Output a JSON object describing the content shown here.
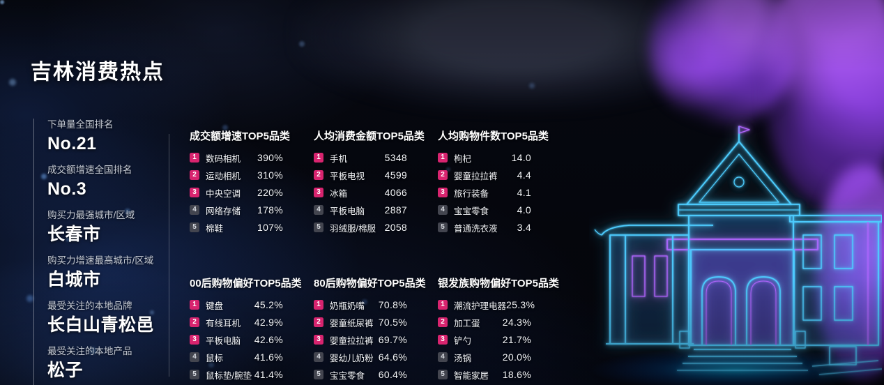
{
  "title": "吉林消费热点",
  "sidebar": {
    "stats": [
      {
        "label": "下单量全国排名",
        "value": "No.21"
      },
      {
        "label": "成交额增速全国排名",
        "value": "No.3"
      },
      {
        "label": "购买力最强城市/区域",
        "value": "长春市"
      },
      {
        "label": "购买力增速最高城市/区域",
        "value": "白城市"
      },
      {
        "label": "最受关注的本地品牌",
        "value": "长白山青松邑"
      },
      {
        "label": "最受关注的本地产品",
        "value": "松子"
      }
    ]
  },
  "tables": [
    {
      "title": "成交额增速TOP5品类",
      "rows": [
        {
          "rank": "1",
          "name": "数码相机",
          "value": "390%"
        },
        {
          "rank": "2",
          "name": "运动相机",
          "value": "310%"
        },
        {
          "rank": "3",
          "name": "中央空调",
          "value": "220%"
        },
        {
          "rank": "4",
          "name": "网络存储",
          "value": "178%"
        },
        {
          "rank": "5",
          "name": "棉鞋",
          "value": "107%"
        }
      ]
    },
    {
      "title": "人均消费金额TOP5品类",
      "rows": [
        {
          "rank": "1",
          "name": "手机",
          "value": "5348"
        },
        {
          "rank": "2",
          "name": "平板电视",
          "value": "4599"
        },
        {
          "rank": "3",
          "name": "冰箱",
          "value": "4066"
        },
        {
          "rank": "4",
          "name": "平板电脑",
          "value": "2887"
        },
        {
          "rank": "5",
          "name": "羽绒服/棉服",
          "value": "2058"
        }
      ]
    },
    {
      "title": "人均购物件数TOP5品类",
      "rows": [
        {
          "rank": "1",
          "name": "枸杞",
          "value": "14.0"
        },
        {
          "rank": "2",
          "name": "婴童拉拉裤",
          "value": "4.4"
        },
        {
          "rank": "3",
          "name": "旅行装备",
          "value": "4.1"
        },
        {
          "rank": "4",
          "name": "宝宝零食",
          "value": "4.0"
        },
        {
          "rank": "5",
          "name": "普通洗衣液",
          "value": "3.4"
        }
      ]
    },
    {
      "title": "00后购物偏好TOP5品类",
      "rows": [
        {
          "rank": "1",
          "name": "键盘",
          "value": "45.2%"
        },
        {
          "rank": "2",
          "name": "有线耳机",
          "value": "42.9%"
        },
        {
          "rank": "3",
          "name": "平板电脑",
          "value": "42.6%"
        },
        {
          "rank": "4",
          "name": "鼠标",
          "value": "41.6%"
        },
        {
          "rank": "5",
          "name": "鼠标垫/腕垫",
          "value": "41.4%"
        }
      ]
    },
    {
      "title": "80后购物偏好TOP5品类",
      "rows": [
        {
          "rank": "1",
          "name": "奶瓶奶嘴",
          "value": "70.8%"
        },
        {
          "rank": "2",
          "name": "婴童纸尿裤",
          "value": "70.5%"
        },
        {
          "rank": "3",
          "name": "婴童拉拉裤",
          "value": "69.7%"
        },
        {
          "rank": "4",
          "name": "婴幼儿奶粉",
          "value": "64.6%"
        },
        {
          "rank": "5",
          "name": "宝宝零食",
          "value": "60.4%"
        }
      ]
    },
    {
      "title": "银发族购物偏好TOP5品类",
      "rows": [
        {
          "rank": "1",
          "name": "潮流护理电器",
          "value": "25.3%"
        },
        {
          "rank": "2",
          "name": "加工蛋",
          "value": "24.3%"
        },
        {
          "rank": "3",
          "name": "铲勺",
          "value": "21.7%"
        },
        {
          "rank": "4",
          "name": "汤锅",
          "value": "20.0%"
        },
        {
          "rank": "5",
          "name": "智能家居",
          "value": "18.6%"
        }
      ]
    }
  ],
  "colors": {
    "rank_badge_top3": "#d8246f",
    "rank_badge_rest": "#43454f",
    "neon_cyan": "#4ecdff",
    "neon_purple": "#b265ff",
    "label_gray": "#c5cad3"
  },
  "chart_data": [
    {
      "type": "table",
      "title": "成交额增速TOP5品类",
      "rows": [
        [
          1,
          "数码相机",
          "390%"
        ],
        [
          2,
          "运动相机",
          "310%"
        ],
        [
          3,
          "中央空调",
          "220%"
        ],
        [
          4,
          "网络存储",
          "178%"
        ],
        [
          5,
          "棉鞋",
          "107%"
        ]
      ]
    },
    {
      "type": "table",
      "title": "人均消费金额TOP5品类",
      "rows": [
        [
          1,
          "手机",
          "5348"
        ],
        [
          2,
          "平板电视",
          "4599"
        ],
        [
          3,
          "冰箱",
          "4066"
        ],
        [
          4,
          "平板电脑",
          "2887"
        ],
        [
          5,
          "羽绒服/棉服",
          "2058"
        ]
      ]
    },
    {
      "type": "table",
      "title": "人均购物件数TOP5品类",
      "rows": [
        [
          1,
          "枸杞",
          "14.0"
        ],
        [
          2,
          "婴童拉拉裤",
          "4.4"
        ],
        [
          3,
          "旅行装备",
          "4.1"
        ],
        [
          4,
          "宝宝零食",
          "4.0"
        ],
        [
          5,
          "普通洗衣液",
          "3.4"
        ]
      ]
    },
    {
      "type": "table",
      "title": "00后购物偏好TOP5品类",
      "rows": [
        [
          1,
          "键盘",
          "45.2%"
        ],
        [
          2,
          "有线耳机",
          "42.9%"
        ],
        [
          3,
          "平板电脑",
          "42.6%"
        ],
        [
          4,
          "鼠标",
          "41.6%"
        ],
        [
          5,
          "鼠标垫/腕垫",
          "41.4%"
        ]
      ]
    },
    {
      "type": "table",
      "title": "80后购物偏好TOP5品类",
      "rows": [
        [
          1,
          "奶瓶奶嘴",
          "70.8%"
        ],
        [
          2,
          "婴童纸尿裤",
          "70.5%"
        ],
        [
          3,
          "婴童拉拉裤",
          "69.7%"
        ],
        [
          4,
          "婴幼儿奶粉",
          "64.6%"
        ],
        [
          5,
          "宝宝零食",
          "60.4%"
        ]
      ]
    },
    {
      "type": "table",
      "title": "银发族购物偏好TOP5品类",
      "rows": [
        [
          1,
          "潮流护理电器",
          "25.3%"
        ],
        [
          2,
          "加工蛋",
          "24.3%"
        ],
        [
          3,
          "铲勺",
          "21.7%"
        ],
        [
          4,
          "汤锅",
          "20.0%"
        ],
        [
          5,
          "智能家居",
          "18.6%"
        ]
      ]
    }
  ]
}
